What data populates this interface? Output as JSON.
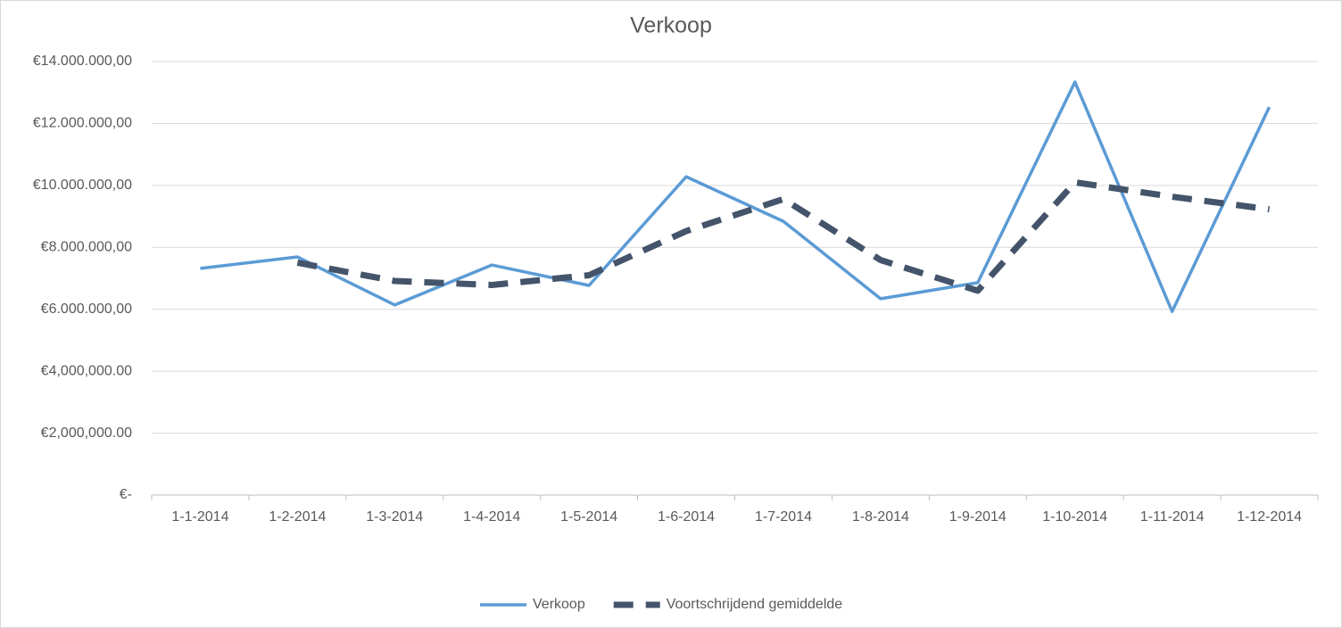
{
  "chart_data": {
    "type": "line",
    "title": "Verkoop",
    "categories": [
      "1-1-2014",
      "1-2-2014",
      "1-3-2014",
      "1-4-2014",
      "1-5-2014",
      "1-6-2014",
      "1-7-2014",
      "1-8-2014",
      "1-9-2014",
      "1-10-2014",
      "1-11-2014",
      "1-12-2014"
    ],
    "series": [
      {
        "name": "Verkoop",
        "color": "#5b9bd5",
        "dashed": false,
        "values": [
          7320000,
          7690000,
          6140000,
          7430000,
          6770000,
          10280000,
          8840000,
          6340000,
          6860000,
          13340000,
          5930000,
          12530000
        ]
      },
      {
        "name": "Voortschrijdend gemiddelde",
        "color": "#44546a",
        "dashed": true,
        "values": [
          null,
          7505000,
          6915000,
          6785000,
          7100000,
          8525000,
          9560000,
          7590000,
          6600000,
          10100000,
          9635000,
          9230000
        ]
      }
    ],
    "ylim": [
      0,
      14000000
    ],
    "yticks": [
      {
        "value": 0,
        "label": "€-"
      },
      {
        "value": 2000000,
        "label": "€2,000,000.00"
      },
      {
        "value": 4000000,
        "label": "€4,000,000.00"
      },
      {
        "value": 6000000,
        "label": "€6.000.000,00"
      },
      {
        "value": 8000000,
        "label": "€8.000.000,00"
      },
      {
        "value": 10000000,
        "label": "€10.000.000,00"
      },
      {
        "value": 12000000,
        "label": "€12.000.000,00"
      },
      {
        "value": 14000000,
        "label": "€14.000.000,00"
      }
    ],
    "grid": true,
    "legend": "bottom"
  }
}
